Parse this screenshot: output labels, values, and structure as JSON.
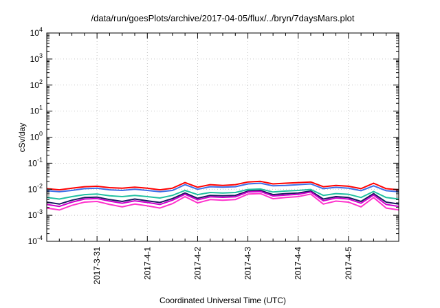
{
  "chart_data": {
    "type": "line",
    "title": "/data/run/goesPlots/archive/2017-04-05/flux/../bryn/7daysMars.plot",
    "xlabel": "Coordinated Universal Time (UTC)",
    "ylabel": "cSv/day",
    "y_scale": "log",
    "ylim": [
      0.0001,
      10000
    ],
    "xlim": [
      "2017-03-30T00:00",
      "2017-04-06T00:00"
    ],
    "x_ticks": [
      "2017-3-31",
      "2017-4-1",
      "2017-4-2",
      "2017-4-3",
      "2017-4-4",
      "2017-4-5"
    ],
    "y_ticks": [
      {
        "value": 0.0001,
        "base": "10",
        "exp": "-4"
      },
      {
        "value": 0.001,
        "base": "10",
        "exp": "-3"
      },
      {
        "value": 0.01,
        "base": "10",
        "exp": "-2"
      },
      {
        "value": 0.1,
        "base": "10",
        "exp": "-1"
      },
      {
        "value": 1,
        "base": "10",
        "exp": "0"
      },
      {
        "value": 10,
        "base": "10",
        "exp": "1"
      },
      {
        "value": 100,
        "base": "10",
        "exp": "2"
      },
      {
        "value": 1000,
        "base": "10",
        "exp": "3"
      },
      {
        "value": 10000,
        "base": "10",
        "exp": "4"
      }
    ],
    "grid": true,
    "x": [
      "2017-03-30T00:00",
      "2017-03-30T06:00",
      "2017-03-30T12:00",
      "2017-03-30T18:00",
      "2017-03-31T00:00",
      "2017-03-31T06:00",
      "2017-03-31T12:00",
      "2017-03-31T18:00",
      "2017-04-01T00:00",
      "2017-04-01T06:00",
      "2017-04-01T12:00",
      "2017-04-01T18:00",
      "2017-04-02T00:00",
      "2017-04-02T06:00",
      "2017-04-02T12:00",
      "2017-04-02T18:00",
      "2017-04-03T00:00",
      "2017-04-03T06:00",
      "2017-04-03T12:00",
      "2017-04-03T18:00",
      "2017-04-04T00:00",
      "2017-04-04T06:00",
      "2017-04-04T12:00",
      "2017-04-04T18:00",
      "2017-04-05T00:00",
      "2017-04-05T06:00",
      "2017-04-05T12:00",
      "2017-04-05T18:00",
      "2017-04-06T00:00"
    ],
    "series": [
      {
        "color": "#ff0000",
        "values": [
          0.0105,
          0.0095,
          0.011,
          0.0125,
          0.013,
          0.0115,
          0.011,
          0.012,
          0.011,
          0.0095,
          0.011,
          0.018,
          0.012,
          0.015,
          0.014,
          0.015,
          0.019,
          0.02,
          0.016,
          0.017,
          0.018,
          0.019,
          0.0125,
          0.014,
          0.013,
          0.0105,
          0.017,
          0.0105,
          0.0095
        ]
      },
      {
        "color": "#3a6ee8",
        "values": [
          0.0088,
          0.008,
          0.009,
          0.0105,
          0.011,
          0.0095,
          0.009,
          0.01,
          0.009,
          0.008,
          0.009,
          0.015,
          0.01,
          0.0125,
          0.012,
          0.0125,
          0.016,
          0.017,
          0.0135,
          0.014,
          0.015,
          0.016,
          0.0105,
          0.0118,
          0.011,
          0.0088,
          0.0135,
          0.0088,
          0.008
        ]
      },
      {
        "color": "#20c0a0",
        "values": [
          0.0048,
          0.0042,
          0.0052,
          0.0062,
          0.0065,
          0.0056,
          0.0052,
          0.0058,
          0.0052,
          0.0046,
          0.0058,
          0.009,
          0.0062,
          0.0075,
          0.0072,
          0.0075,
          0.0098,
          0.0102,
          0.0078,
          0.0085,
          0.009,
          0.0098,
          0.0058,
          0.0068,
          0.0064,
          0.0048,
          0.0082,
          0.0048,
          0.0042
        ]
      },
      {
        "color": "#1a1a60",
        "values": [
          0.0032,
          0.0027,
          0.0038,
          0.0048,
          0.005,
          0.004,
          0.0034,
          0.0042,
          0.0036,
          0.0031,
          0.0044,
          0.0072,
          0.0045,
          0.0058,
          0.0056,
          0.0058,
          0.0085,
          0.009,
          0.0062,
          0.0068,
          0.0072,
          0.0085,
          0.0042,
          0.0052,
          0.0048,
          0.0034,
          0.0068,
          0.0032,
          0.0027
        ]
      },
      {
        "color": "#cc00cc",
        "values": [
          0.0026,
          0.0022,
          0.0032,
          0.0042,
          0.0044,
          0.0035,
          0.0029,
          0.0036,
          0.0031,
          0.0026,
          0.0038,
          0.0064,
          0.0039,
          0.0051,
          0.0049,
          0.0051,
          0.0078,
          0.0082,
          0.0055,
          0.006,
          0.0064,
          0.0078,
          0.0036,
          0.0046,
          0.0042,
          0.0029,
          0.006,
          0.0026,
          0.0022
        ]
      },
      {
        "color": "#ff33cc",
        "values": [
          0.0019,
          0.0016,
          0.0024,
          0.0032,
          0.0034,
          0.0026,
          0.0021,
          0.0027,
          0.0023,
          0.0019,
          0.0028,
          0.0052,
          0.003,
          0.004,
          0.0038,
          0.004,
          0.0065,
          0.0068,
          0.0043,
          0.0048,
          0.0052,
          0.0065,
          0.0027,
          0.0035,
          0.0032,
          0.0021,
          0.0048,
          0.0019,
          0.0016
        ]
      }
    ]
  }
}
